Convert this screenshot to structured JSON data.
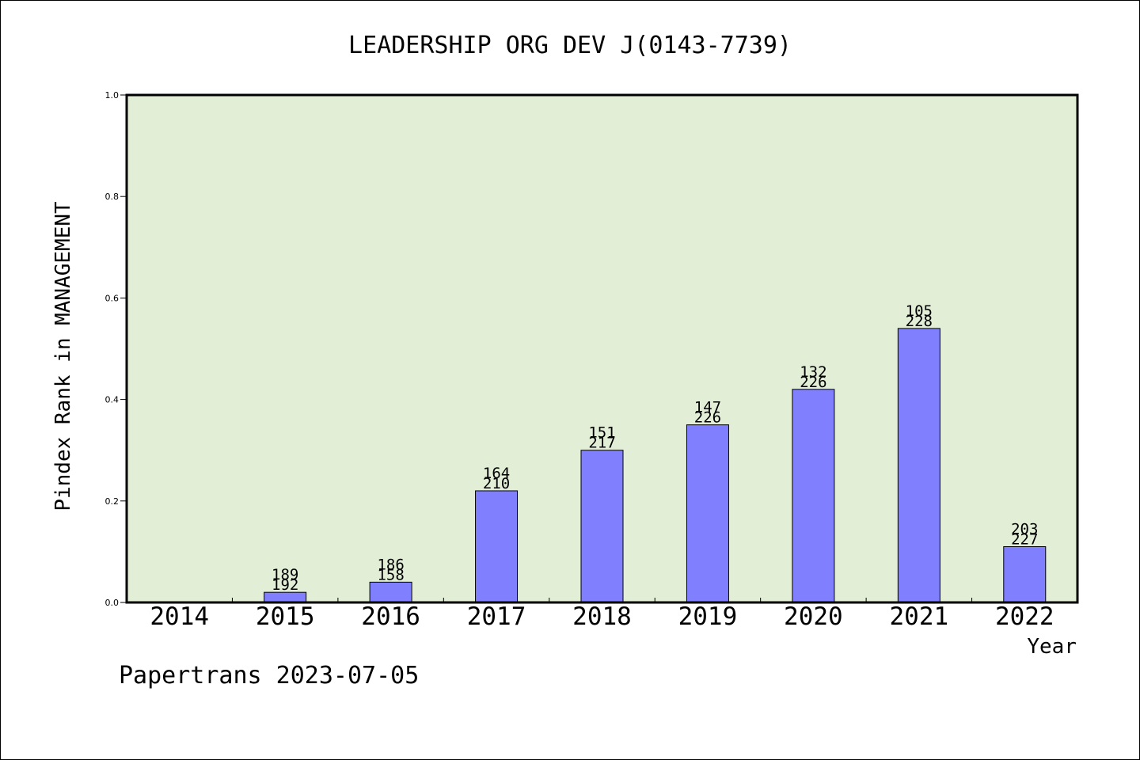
{
  "chart_data": {
    "type": "bar",
    "title": "LEADERSHIP ORG DEV J(0143-7739)",
    "xlabel": "Year",
    "ylabel": "Pindex Rank in MANAGEMENT",
    "footer": "Papertrans 2023-07-05",
    "categories": [
      "2014",
      "2015",
      "2016",
      "2017",
      "2018",
      "2019",
      "2020",
      "2021",
      "2022"
    ],
    "values": [
      null,
      0.02,
      0.04,
      0.22,
      0.3,
      0.35,
      0.42,
      0.54,
      0.11
    ],
    "labels_top": [
      "",
      "189",
      "186",
      "164",
      "151",
      "147",
      "132",
      "105",
      "203"
    ],
    "labels_bottom": [
      "",
      "192",
      "158",
      "210",
      "217",
      "226",
      "226",
      "228",
      "227"
    ],
    "ylim": [
      0,
      1.0
    ],
    "yticks": [
      "0.0",
      "0.2",
      "0.4",
      "0.6",
      "0.8",
      "1.0"
    ],
    "grid": false,
    "colors": {
      "plot_bg": "#e2efd6",
      "bar": "#8080ff",
      "bar_edge": "#000000"
    }
  }
}
